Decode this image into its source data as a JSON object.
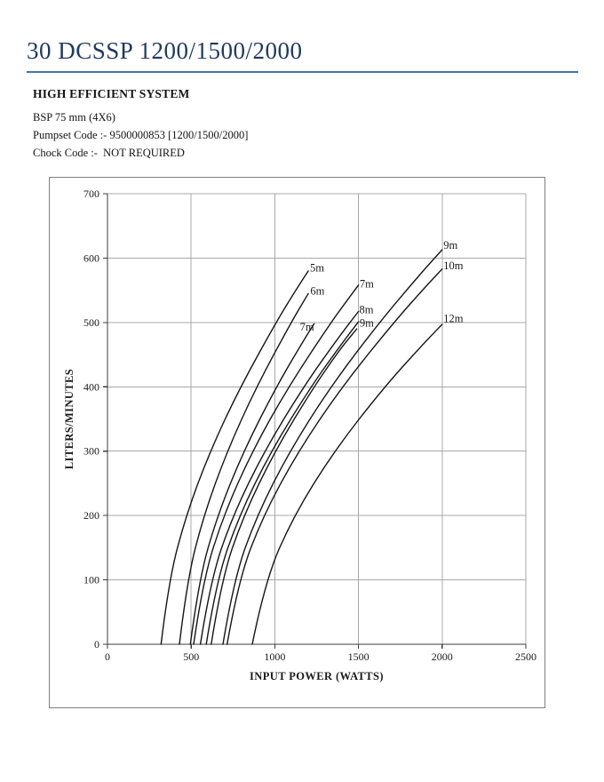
{
  "header": {
    "title": "30 DCSSP 1200/1500/2000"
  },
  "specs": {
    "heading": "HIGH EFFICIENT SYSTEM",
    "lines": [
      "BSP 75 mm (4X6)",
      "Pumpset Code :- 9500000853 [1200/1500/2000]",
      "Chock Code :-  NOT REQUIRED"
    ]
  },
  "colors": {
    "title_text": "#203a60",
    "title_rule": "#4472b0",
    "grid": "#a8a8a8",
    "axis": "#3c3c3c",
    "curve": "#141414",
    "text": "#1a1a1a",
    "frame_border": "#7f7f7f"
  },
  "chart_data": {
    "type": "line",
    "title": "",
    "xlabel": "INPUT POWER (WATTS)",
    "ylabel": "LITERS/MINUTES",
    "xlim": [
      0,
      2500
    ],
    "ylim": [
      0,
      700
    ],
    "xticks": [
      0,
      500,
      1000,
      1500,
      2000,
      2500
    ],
    "yticks": [
      0,
      100,
      200,
      300,
      400,
      500,
      600,
      700
    ],
    "grid": true,
    "legend_position": "inline-curve-labels",
    "series": [
      {
        "name": "5m",
        "model": "1200",
        "label_at": [
          1210,
          585
        ],
        "points": [
          [
            320,
            0
          ],
          [
            367,
            100
          ],
          [
            469,
            200
          ],
          [
            613,
            300
          ],
          [
            794,
            400
          ],
          [
            1007,
            500
          ],
          [
            1125,
            550
          ],
          [
            1200,
            580
          ]
        ]
      },
      {
        "name": "6m",
        "model": "1200",
        "label_at": [
          1212,
          549
        ],
        "points": [
          [
            430,
            0
          ],
          [
            476,
            100
          ],
          [
            575,
            200
          ],
          [
            715,
            300
          ],
          [
            890,
            400
          ],
          [
            1097,
            500
          ],
          [
            1200,
            545
          ]
        ]
      },
      {
        "name": "7m",
        "model": "1200",
        "label_at": [
          1150,
          493
        ],
        "points": [
          [
            495,
            0
          ],
          [
            546,
            100
          ],
          [
            657,
            200
          ],
          [
            813,
            300
          ],
          [
            1009,
            400
          ],
          [
            1167,
            470
          ],
          [
            1235,
            498
          ]
        ]
      },
      {
        "name": "7m",
        "model": "1500",
        "label_at": [
          1507,
          560
        ],
        "points": [
          [
            515,
            0
          ],
          [
            571,
            100
          ],
          [
            693,
            200
          ],
          [
            865,
            300
          ],
          [
            1081,
            400
          ],
          [
            1335,
            500
          ],
          [
            1448,
            540
          ],
          [
            1500,
            558
          ]
        ]
      },
      {
        "name": "8m",
        "model": "1500",
        "label_at": [
          1505,
          520
        ],
        "points": [
          [
            555,
            0
          ],
          [
            616,
            100
          ],
          [
            749,
            200
          ],
          [
            937,
            300
          ],
          [
            1171,
            400
          ],
          [
            1390,
            480
          ],
          [
            1500,
            517
          ]
        ]
      },
      {
        "name": "9m",
        "model": "1500",
        "label_at": [
          1507,
          499
        ],
        "points": [
          [
            590,
            0
          ],
          [
            652,
            100
          ],
          [
            787,
            200
          ],
          [
            977,
            300
          ],
          [
            1215,
            400
          ],
          [
            1408,
            470
          ],
          [
            1500,
            501
          ]
        ]
      },
      {
        "name": "",
        "model": "1500",
        "label_at": null,
        "points": [
          [
            620,
            0
          ],
          [
            681,
            100
          ],
          [
            813,
            200
          ],
          [
            1000,
            300
          ],
          [
            1233,
            400
          ],
          [
            1394,
            460
          ],
          [
            1490,
            490
          ]
        ]
      },
      {
        "name": "9m",
        "model": "2000",
        "label_at": [
          2008,
          620
        ],
        "points": [
          [
            690,
            0
          ],
          [
            754,
            100
          ],
          [
            893,
            200
          ],
          [
            1088,
            300
          ],
          [
            1333,
            400
          ],
          [
            1623,
            500
          ],
          [
            1885,
            580
          ],
          [
            2000,
            613
          ]
        ]
      },
      {
        "name": "10m",
        "model": "2000",
        "label_at": [
          2008,
          588
        ],
        "points": [
          [
            715,
            0
          ],
          [
            783,
            100
          ],
          [
            931,
            200
          ],
          [
            1140,
            300
          ],
          [
            1401,
            400
          ],
          [
            1710,
            500
          ],
          [
            1916,
            560
          ],
          [
            2000,
            583
          ]
        ]
      },
      {
        "name": "12m",
        "model": "2000",
        "label_at": [
          2008,
          506
        ],
        "points": [
          [
            865,
            0
          ],
          [
            943,
            100
          ],
          [
            1114,
            200
          ],
          [
            1354,
            300
          ],
          [
            1655,
            400
          ],
          [
            1899,
            470
          ],
          [
            2000,
            497
          ]
        ]
      }
    ]
  }
}
